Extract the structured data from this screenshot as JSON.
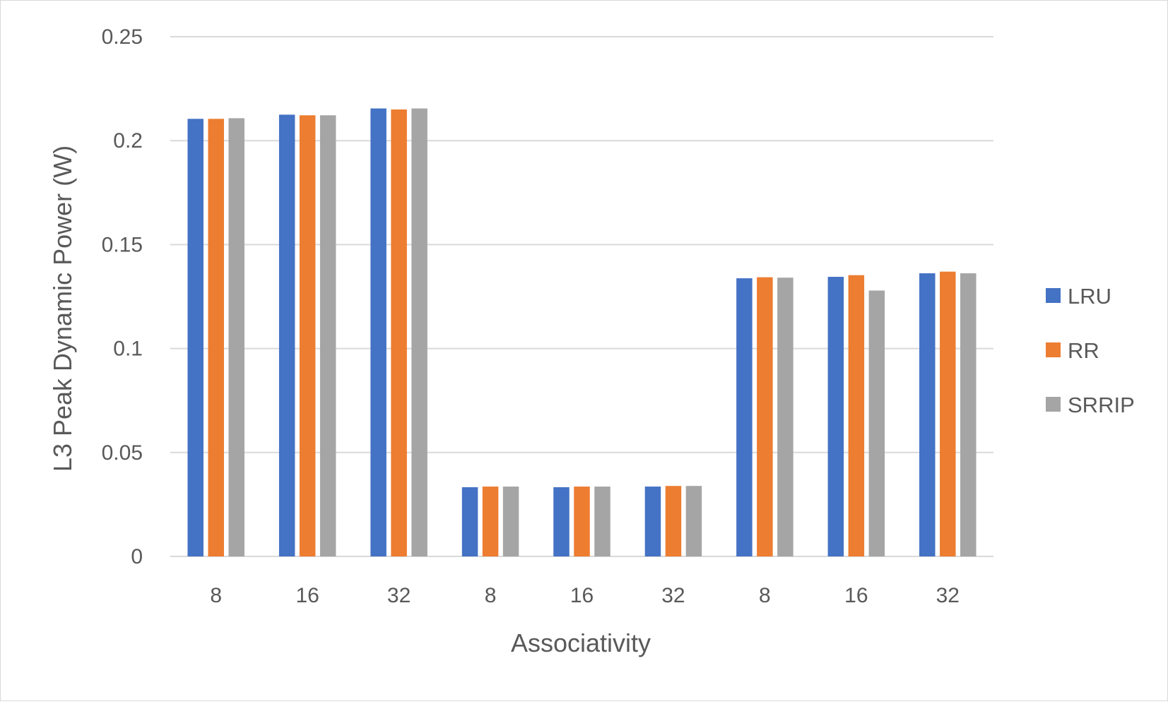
{
  "chart_data": {
    "type": "bar",
    "xlabel": "Associativity",
    "ylabel": "L3 Peak Dynamic Power (W)",
    "categories": [
      "8",
      "16",
      "32",
      "8",
      "16",
      "32",
      "8",
      "16",
      "32"
    ],
    "ylim": [
      0,
      0.25
    ],
    "yticks": [
      0,
      0.05,
      0.1,
      0.15,
      0.2,
      0.25
    ],
    "ytick_labels": [
      "0",
      "0.05",
      "0.1",
      "0.15",
      "0.2",
      "0.25"
    ],
    "grid": true,
    "legend_position": "right",
    "series": [
      {
        "name": "LRU",
        "color": "#4472c4",
        "values": [
          0.2105,
          0.2125,
          0.2155,
          0.0333,
          0.0333,
          0.0336,
          0.1338,
          0.1345,
          0.1362
        ]
      },
      {
        "name": "RR",
        "color": "#ed7d31",
        "values": [
          0.2105,
          0.2122,
          0.215,
          0.0336,
          0.0336,
          0.0339,
          0.1343,
          0.1353,
          0.137
        ]
      },
      {
        "name": "SRRIP",
        "color": "#a5a5a5",
        "values": [
          0.2108,
          0.2122,
          0.2155,
          0.0336,
          0.0336,
          0.0339,
          0.1341,
          0.1279,
          0.1362
        ]
      }
    ]
  }
}
